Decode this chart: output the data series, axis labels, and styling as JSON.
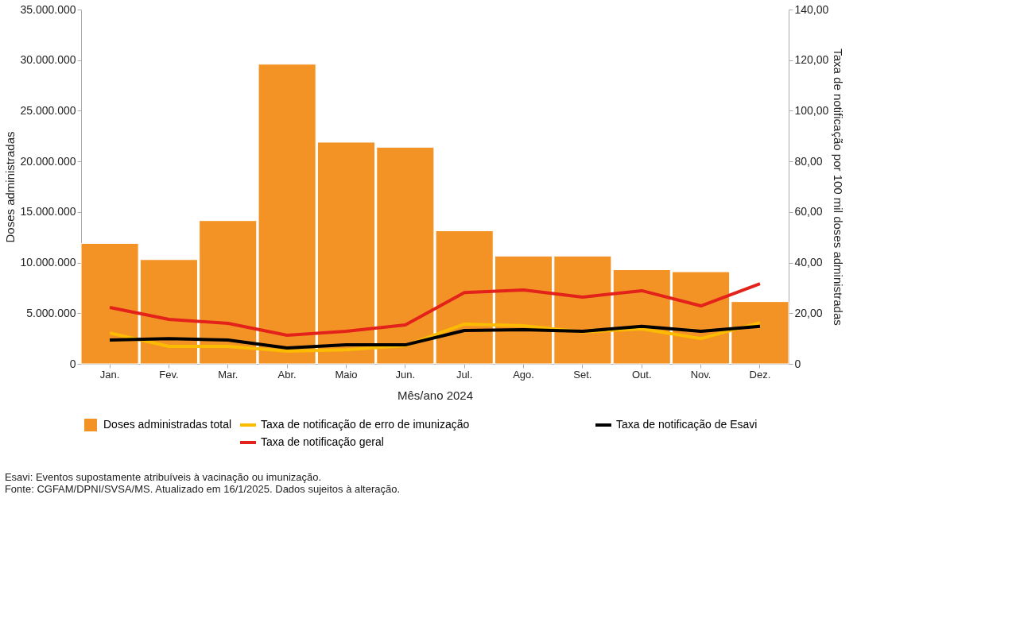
{
  "chart_data": {
    "type": "bar",
    "xlabel": "Mês/ano 2024",
    "ylabel": "Doses administradas",
    "y2label": "Taxa de notificação por 100 mil doses administradas",
    "categories": [
      "Jan.",
      "Fev.",
      "Mar.",
      "Abr.",
      "Maio",
      "Jun.",
      "Jul.",
      "Ago.",
      "Set.",
      "Out.",
      "Nov.",
      "Dez."
    ],
    "series": [
      {
        "name": "Doses administradas total",
        "color": "#f39325",
        "values": [
          11900000,
          10300000,
          14150000,
          29600000,
          21900000,
          21400000,
          13150000,
          10650000,
          10650000,
          9300000,
          9100000,
          6150000
        ]
      },
      {
        "name": "Taxa de notificação de erro de imunização",
        "type": "line",
        "axis": "y2",
        "color": "#fbbb00",
        "values": [
          12.2,
          6.9,
          6.9,
          5.0,
          5.6,
          7.2,
          15.7,
          15.1,
          12.6,
          13.8,
          10.0,
          16.3
        ]
      },
      {
        "name": "Taxa de notificação de Esavi",
        "type": "line",
        "axis": "y2",
        "color": "#000000",
        "values": [
          9.4,
          10.0,
          9.4,
          6.3,
          7.5,
          7.5,
          13.2,
          13.5,
          12.9,
          14.8,
          12.9,
          14.8
        ]
      },
      {
        "name": "Taxa de notificação geral",
        "type": "line",
        "axis": "y2",
        "color": "#e3231b",
        "values": [
          22.3,
          17.6,
          16.0,
          11.3,
          12.9,
          15.4,
          28.2,
          29.2,
          26.4,
          28.9,
          22.9,
          31.7
        ]
      }
    ],
    "ylim": [
      0,
      35000000
    ],
    "yticks": [
      {
        "value": 0,
        "label": "0"
      },
      {
        "value": 5000000,
        "label": "5.000.000"
      },
      {
        "value": 10000000,
        "label": "10.000.000"
      },
      {
        "value": 15000000,
        "label": "15.000.000"
      },
      {
        "value": 20000000,
        "label": "20.000.000"
      },
      {
        "value": 25000000,
        "label": "25.000.000"
      },
      {
        "value": 30000000,
        "label": "30.000.000"
      },
      {
        "value": 35000000,
        "label": "35.000.000"
      }
    ],
    "y2lim": [
      0,
      140
    ],
    "y2ticks": [
      {
        "value": 0,
        "label": "0"
      },
      {
        "value": 20,
        "label": "20,00"
      },
      {
        "value": 40,
        "label": "40,00"
      },
      {
        "value": 60,
        "label": "60,00"
      },
      {
        "value": 80,
        "label": "80,00"
      },
      {
        "value": 100,
        "label": "100,00"
      },
      {
        "value": 120,
        "label": "120,00"
      },
      {
        "value": 140,
        "label": "140,00"
      }
    ],
    "grid": false,
    "legend": "bottom",
    "annotations": [
      "Esavi: Eventos supostamente atribuíveis à vacinação ou imunização.",
      "Fonte: CGFAM/DPNI/SVSA/MS. Atualizado em 16/1/2025. Dados sujeitos à alteração."
    ]
  }
}
